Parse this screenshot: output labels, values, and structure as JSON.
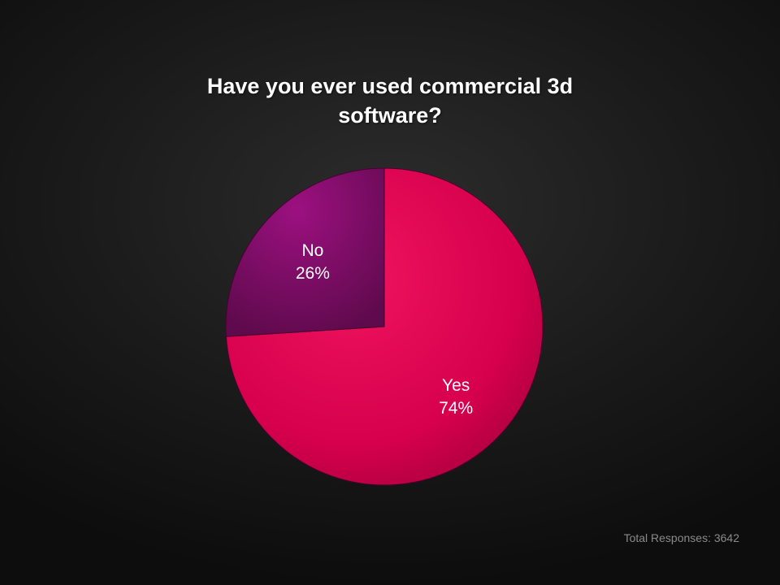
{
  "chart_data": {
    "type": "pie",
    "title": "Have you ever used commercial 3d\nsoftware?",
    "slices": [
      {
        "label": "Yes",
        "value": 74,
        "value_label": "74%",
        "color": "#d9004f"
      },
      {
        "label": "No",
        "value": 26,
        "value_label": "26%",
        "color": "#8a0a6a"
      }
    ],
    "legend": "none"
  },
  "footer": {
    "total_responses": "Total Responses: 3642"
  }
}
